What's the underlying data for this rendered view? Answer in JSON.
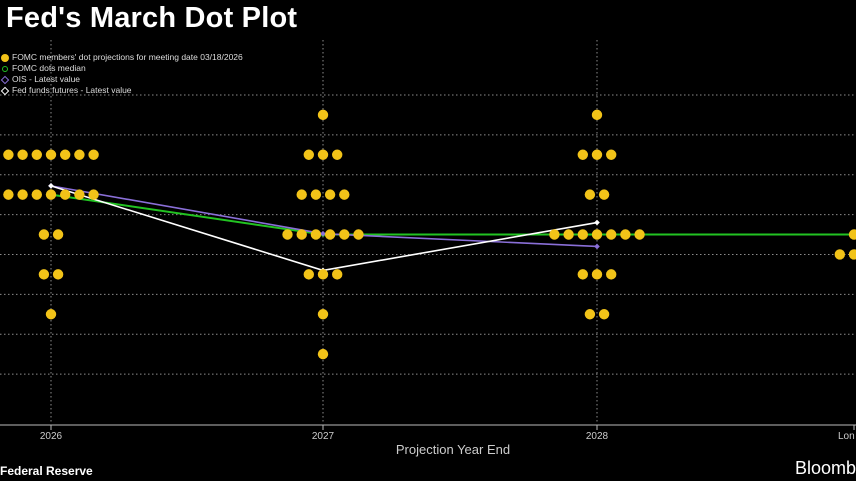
{
  "chart_data": {
    "type": "scatter",
    "title": "Fed's March Dot Plot",
    "xlabel": "Projection Year End",
    "ylabel": "",
    "categories": [
      "2026",
      "2027",
      "2028",
      "Lon"
    ],
    "ylim": [
      2.125,
      4.125
    ],
    "series": [
      {
        "name": "FOMC members' dot projections for meeting date 03/18/2026",
        "kind": "dots",
        "color": "#f2c318",
        "points": [
          {
            "cat": 0,
            "y": 3.625,
            "n": 7
          },
          {
            "cat": 0,
            "y": 3.375,
            "n": 7
          },
          {
            "cat": 0,
            "y": 3.125,
            "n": 2
          },
          {
            "cat": 0,
            "y": 2.875,
            "n": 2
          },
          {
            "cat": 0,
            "y": 2.625,
            "n": 1
          },
          {
            "cat": 1,
            "y": 3.875,
            "n": 1
          },
          {
            "cat": 1,
            "y": 3.625,
            "n": 3
          },
          {
            "cat": 1,
            "y": 3.375,
            "n": 4
          },
          {
            "cat": 1,
            "y": 3.125,
            "n": 6
          },
          {
            "cat": 1,
            "y": 2.875,
            "n": 3
          },
          {
            "cat": 1,
            "y": 2.625,
            "n": 1
          },
          {
            "cat": 1,
            "y": 2.375,
            "n": 1
          },
          {
            "cat": 2,
            "y": 3.875,
            "n": 1
          },
          {
            "cat": 2,
            "y": 3.625,
            "n": 3
          },
          {
            "cat": 2,
            "y": 3.375,
            "n": 2
          },
          {
            "cat": 2,
            "y": 3.125,
            "n": 7
          },
          {
            "cat": 2,
            "y": 2.875,
            "n": 3
          },
          {
            "cat": 2,
            "y": 2.625,
            "n": 2
          },
          {
            "cat": 3,
            "y": 3.125,
            "n": 1
          },
          {
            "cat": 3,
            "y": 3.0,
            "n": 2
          }
        ]
      },
      {
        "name": "FOMC dots median",
        "kind": "line",
        "color": "#22c322",
        "points": [
          {
            "cat": 0,
            "y": 3.375
          },
          {
            "cat": 1,
            "y": 3.125
          },
          {
            "cat": 2,
            "y": 3.125
          },
          {
            "cat": 3,
            "y": 3.125
          }
        ]
      },
      {
        "name": "OIS - Latest value",
        "kind": "line",
        "color": "#8a6fd8",
        "points": [
          {
            "cat": 0,
            "y": 3.43
          },
          {
            "cat": 1,
            "y": 3.13
          },
          {
            "cat": 2,
            "y": 3.05
          }
        ]
      },
      {
        "name": "Fed funds futures - Latest value",
        "kind": "line",
        "color": "#ffffff",
        "points": [
          {
            "cat": 0,
            "y": 3.43
          },
          {
            "cat": 1,
            "y": 2.9
          },
          {
            "cat": 2,
            "y": 3.2
          }
        ]
      }
    ],
    "grid": true,
    "legend_position": "top-left"
  },
  "footer": {
    "source": "Federal Reserve",
    "brand": "Bloomb"
  },
  "colors": {
    "background": "#000000",
    "grid": "#8c8c8c",
    "dot": "#f2c318",
    "median": "#22c322",
    "ois": "#8a6fd8",
    "futures": "#ffffff"
  }
}
